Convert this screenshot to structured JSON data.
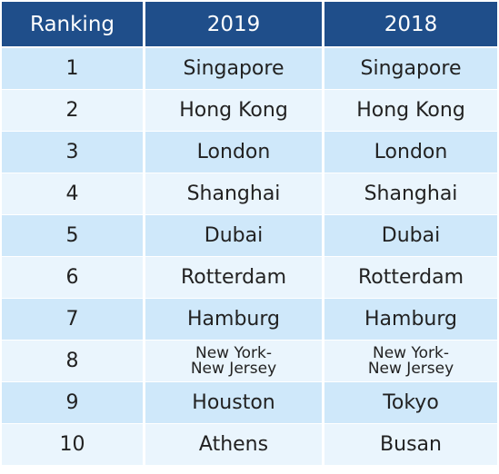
{
  "header": {
    "ranking": "Ranking",
    "col_2019": "2019",
    "col_2018": "2018"
  },
  "rows": [
    {
      "rank": "1",
      "y2019": "Singapore",
      "y2018": "Singapore"
    },
    {
      "rank": "2",
      "y2019": "Hong Kong",
      "y2018": "Hong Kong"
    },
    {
      "rank": "3",
      "y2019": "London",
      "y2018": "London"
    },
    {
      "rank": "4",
      "y2019": "Shanghai",
      "y2018": "Shanghai"
    },
    {
      "rank": "5",
      "y2019": "Dubai",
      "y2018": "Dubai"
    },
    {
      "rank": "6",
      "y2019": "Rotterdam",
      "y2018": "Rotterdam"
    },
    {
      "rank": "7",
      "y2019": "Hamburg",
      "y2018": "Hamburg"
    },
    {
      "rank": "8",
      "y2019": "New York-\nNew Jersey",
      "y2018": "New York-\nNew Jersey"
    },
    {
      "rank": "9",
      "y2019": "Houston",
      "y2018": "Tokyo"
    },
    {
      "rank": "10",
      "y2019": "Athens",
      "y2018": "Busan"
    }
  ],
  "colors": {
    "header_bg": "#1f4e8a",
    "row_odd_bg": "#cfe8fa",
    "row_even_bg": "#eaf5fd"
  }
}
